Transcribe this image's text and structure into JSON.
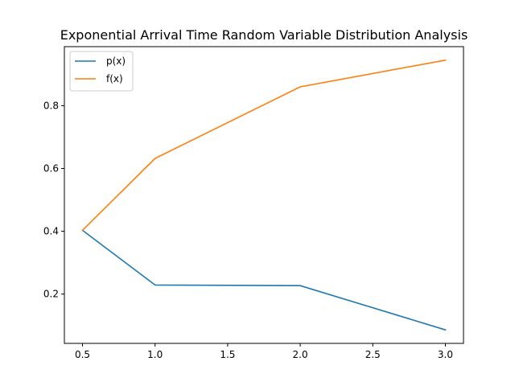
{
  "chart_data": {
    "type": "line",
    "title": "Exponential Arrival Time Random Variable Distribution Analysis",
    "xlabel": "",
    "ylabel": "",
    "x": [
      0.5,
      1.0,
      2.0,
      3.0
    ],
    "series": [
      {
        "name": "p(x)",
        "values": [
          0.403,
          0.229,
          0.227,
          0.086
        ],
        "color": "#1f77b4"
      },
      {
        "name": "f(x)",
        "values": [
          0.403,
          0.632,
          0.86,
          0.945
        ],
        "color": "#ff7f0e"
      }
    ],
    "xlim": [
      0.375,
      3.125
    ],
    "ylim": [
      0.043,
      0.988
    ],
    "xticks": [
      0.5,
      1.0,
      1.5,
      2.0,
      2.5,
      3.0
    ],
    "xtick_labels": [
      "0.5",
      "1.0",
      "1.5",
      "2.0",
      "2.5",
      "3.0"
    ],
    "yticks": [
      0.2,
      0.4,
      0.6,
      0.8
    ],
    "ytick_labels": [
      "0.2",
      "0.4",
      "0.6",
      "0.8"
    ],
    "grid": false,
    "legend_position": "top-left"
  }
}
